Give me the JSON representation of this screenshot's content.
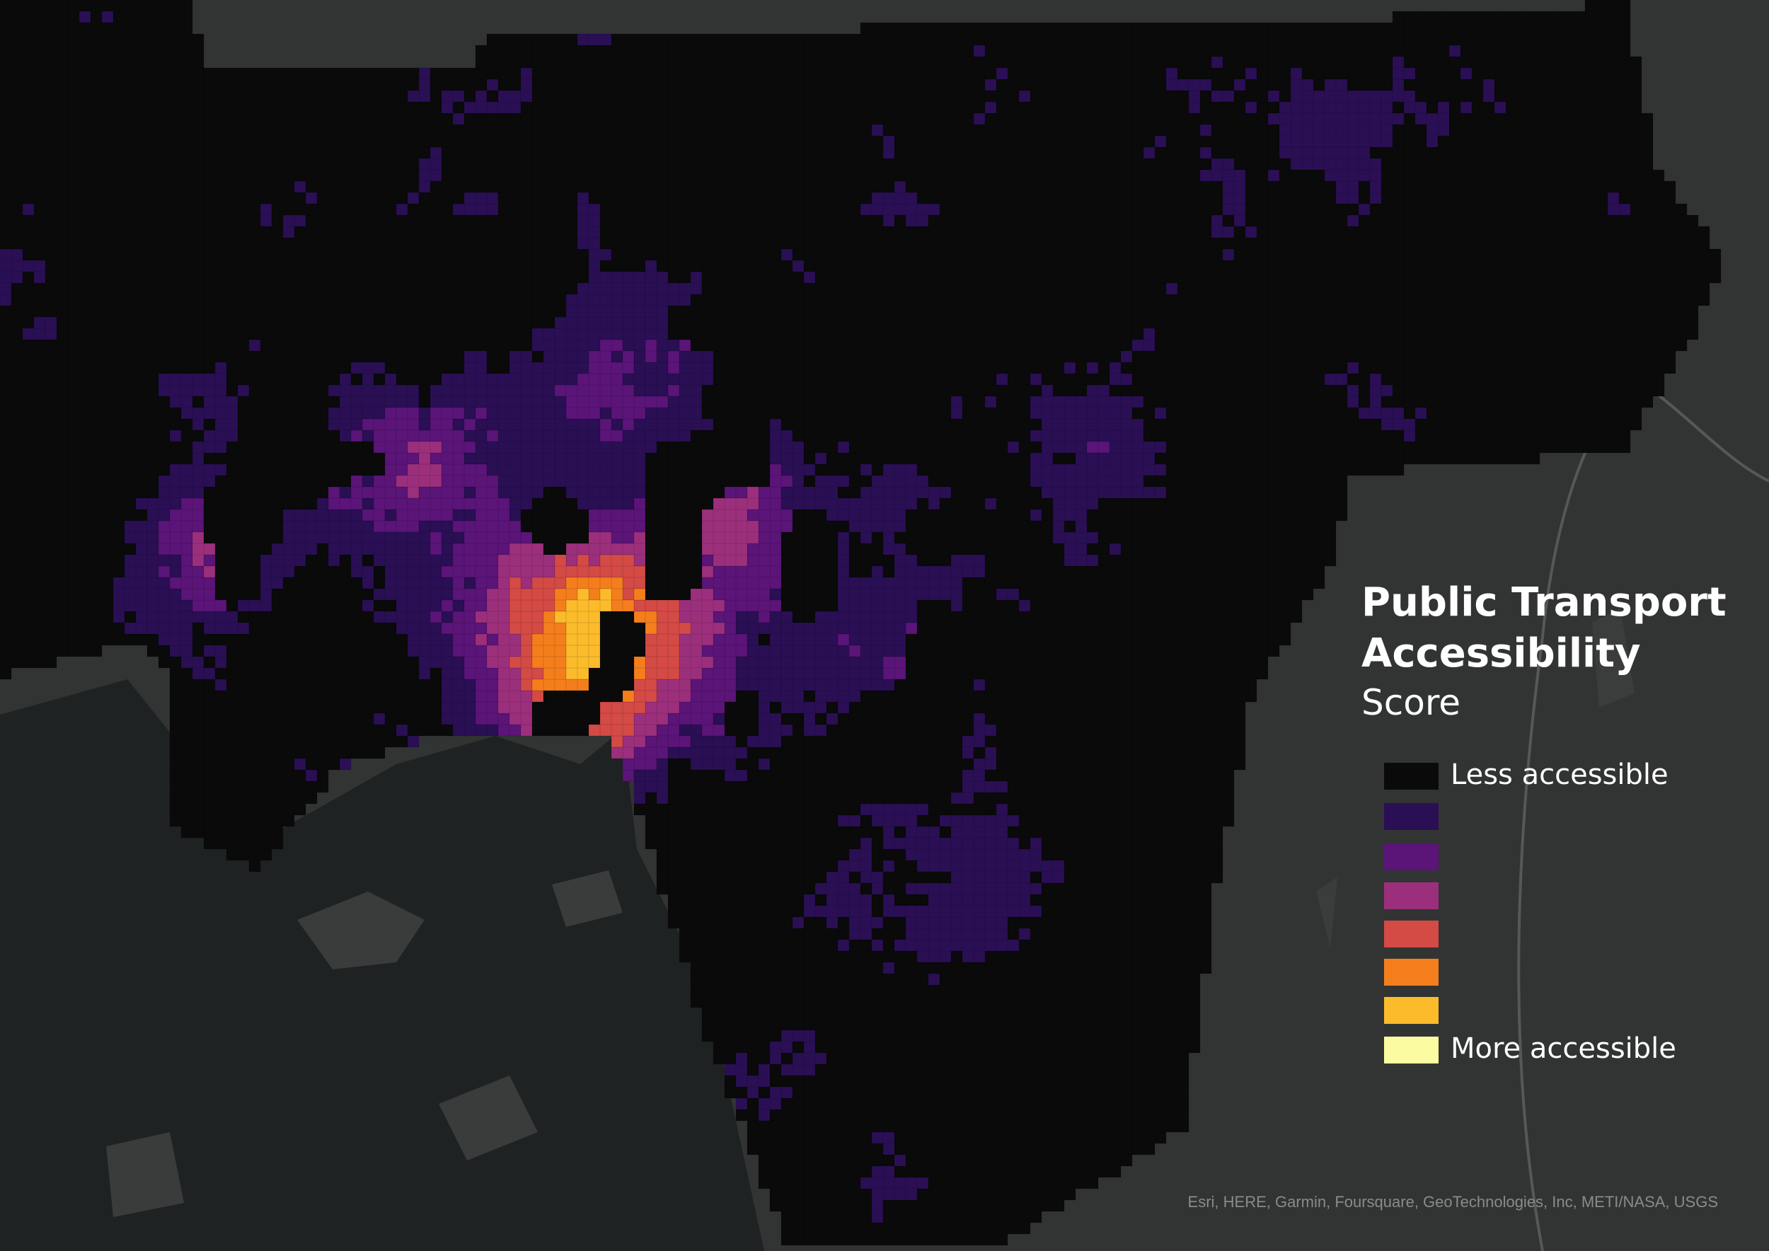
{
  "map": {
    "title_lines": [
      "Public Transport",
      "Accessibility"
    ],
    "subtitle": "Score",
    "legend": {
      "classes": [
        {
          "color": "#0a0a0a",
          "label": "Less accessible"
        },
        {
          "color": "#2a0f55"
        },
        {
          "color": "#5b1478"
        },
        {
          "color": "#9c2f7c"
        },
        {
          "color": "#d44a45"
        },
        {
          "color": "#f57e1c"
        },
        {
          "color": "#fbbb2b"
        },
        {
          "color": "#fbfba2",
          "label": "More accessible"
        }
      ]
    },
    "attribution": "Esri, HERE, Garmin, Foursquare, GeoTechnologies, Inc, METI/NASA, USGS"
  }
}
